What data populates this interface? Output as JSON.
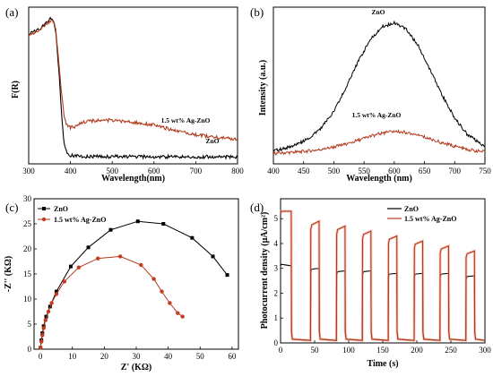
{
  "colors": {
    "zno": "#000000",
    "ag_zno": "#b23a1c",
    "marker_zno": "#000000",
    "marker_ag": "#c23b22"
  },
  "chart_data": [
    {
      "panel": "(a)",
      "type": "line",
      "xlabel": "Wavelength(nm)",
      "ylabel": "F(R)",
      "xlim": [
        300,
        800
      ],
      "xticks": [
        "300",
        "400",
        "500",
        "600",
        "700",
        "800"
      ],
      "annotations": [
        "1.5 wt% Ag-ZnO",
        "ZnO"
      ],
      "series": [
        {
          "name": "ZnO",
          "x": [
            300,
            310,
            320,
            330,
            340,
            350,
            355,
            360,
            365,
            370,
            375,
            380,
            385,
            390,
            400,
            420,
            450,
            500,
            600,
            700,
            800
          ],
          "y": [
            0.88,
            0.9,
            0.91,
            0.93,
            0.96,
            0.99,
            1.0,
            0.97,
            0.9,
            0.7,
            0.5,
            0.25,
            0.1,
            0.04,
            0.01,
            0.005,
            0.003,
            0.002,
            0.001,
            0.001,
            0.0
          ]
        },
        {
          "name": "1.5 wt% Ag-ZnO",
          "x": [
            300,
            310,
            320,
            330,
            340,
            350,
            355,
            360,
            365,
            370,
            375,
            380,
            385,
            390,
            400,
            410,
            420,
            440,
            460,
            480,
            500,
            550,
            600,
            650,
            700,
            750,
            800
          ],
          "y": [
            0.87,
            0.89,
            0.9,
            0.92,
            0.95,
            0.98,
            0.99,
            0.97,
            0.91,
            0.75,
            0.58,
            0.42,
            0.3,
            0.24,
            0.21,
            0.22,
            0.24,
            0.255,
            0.262,
            0.265,
            0.264,
            0.25,
            0.23,
            0.19,
            0.16,
            0.14,
            0.13
          ]
        }
      ]
    },
    {
      "panel": "(b)",
      "type": "line",
      "xlabel": "Wavelength (nm)",
      "ylabel": "Intensity (a.u.)",
      "xlim": [
        400,
        750
      ],
      "xticks": [
        "400",
        "450",
        "500",
        "550",
        "600",
        "650",
        "700",
        "750"
      ],
      "annotations": [
        "ZnO",
        "1.5 wt% Ag-ZnO"
      ],
      "series": [
        {
          "name": "ZnO",
          "x": [
            400,
            420,
            440,
            460,
            480,
            500,
            520,
            540,
            560,
            580,
            600,
            620,
            640,
            660,
            680,
            700,
            720,
            740,
            750
          ],
          "y": [
            0.02,
            0.04,
            0.07,
            0.12,
            0.2,
            0.32,
            0.5,
            0.7,
            0.87,
            0.97,
            1.0,
            0.95,
            0.82,
            0.63,
            0.44,
            0.27,
            0.15,
            0.08,
            0.06
          ]
        },
        {
          "name": "1.5 wt% Ag-ZnO",
          "x": [
            400,
            440,
            480,
            520,
            560,
            580,
            600,
            620,
            640,
            680,
            720,
            750
          ],
          "y": [
            0.0,
            0.01,
            0.03,
            0.07,
            0.13,
            0.155,
            0.17,
            0.16,
            0.14,
            0.08,
            0.03,
            0.01
          ]
        }
      ]
    },
    {
      "panel": "(c)",
      "type": "scatter",
      "xlabel": "Z' (KΩ)",
      "ylabel": "-Z'' (KΩ)",
      "xlim": [
        -2,
        62
      ],
      "ylim": [
        0,
        30
      ],
      "xticks": [
        0,
        10,
        20,
        30,
        40,
        50,
        60
      ],
      "yticks": [
        0,
        5,
        10,
        15,
        20,
        25,
        30
      ],
      "legend_position": "top-left",
      "series": [
        {
          "name": "ZnO",
          "x": [
            0.0,
            0.3,
            0.6,
            1.0,
            1.8,
            3.0,
            5.0,
            9.5,
            15.0,
            22.0,
            30.5,
            38.5,
            47.5,
            54.0,
            58.5
          ],
          "y": [
            0.3,
            1.8,
            3.2,
            4.6,
            6.5,
            8.5,
            11.5,
            16.5,
            20.3,
            23.8,
            25.5,
            25.0,
            22.2,
            18.5,
            14.8
          ]
        },
        {
          "name": "1.5 wt% Ag-ZnO",
          "x": [
            0.0,
            0.3,
            0.6,
            1.0,
            1.6,
            2.5,
            3.5,
            5.0,
            7.5,
            12.0,
            18.0,
            25.0,
            31.5,
            35.5,
            38.0,
            40.5,
            43.0,
            44.5
          ],
          "y": [
            0.3,
            1.5,
            2.8,
            4.2,
            5.8,
            7.5,
            9.2,
            11.0,
            13.5,
            16.3,
            18.1,
            18.5,
            16.8,
            14.0,
            11.5,
            9.2,
            7.2,
            6.5
          ]
        }
      ]
    },
    {
      "panel": "(d)",
      "type": "line",
      "xlabel": "Time (s)",
      "ylabel": "Photocurrent density (μA/cm²)",
      "xlim": [
        0,
        300
      ],
      "ylim": [
        0,
        5.8
      ],
      "xticks": [
        0,
        50,
        100,
        150,
        200,
        250,
        300
      ],
      "yticks": [
        0,
        1,
        2,
        3,
        4,
        5
      ],
      "legend_position": "top-right",
      "light_cycles": {
        "on_start": [
          0,
          44,
          82,
          120,
          158,
          196,
          234,
          272
        ],
        "on_end": [
          16,
          57,
          95,
          133,
          171,
          209,
          247,
          285
        ],
        "baseline": 0.1
      },
      "series": [
        {
          "name": "ZnO",
          "on_values": [
            3.1,
            3.0,
            2.9,
            2.9,
            2.8,
            2.8,
            2.8,
            2.7
          ]
        },
        {
          "name": "1.5 wt% Ag-ZnO",
          "on_values": [
            5.3,
            4.9,
            4.7,
            4.5,
            4.3,
            4.1,
            3.9,
            3.7
          ]
        }
      ]
    }
  ]
}
